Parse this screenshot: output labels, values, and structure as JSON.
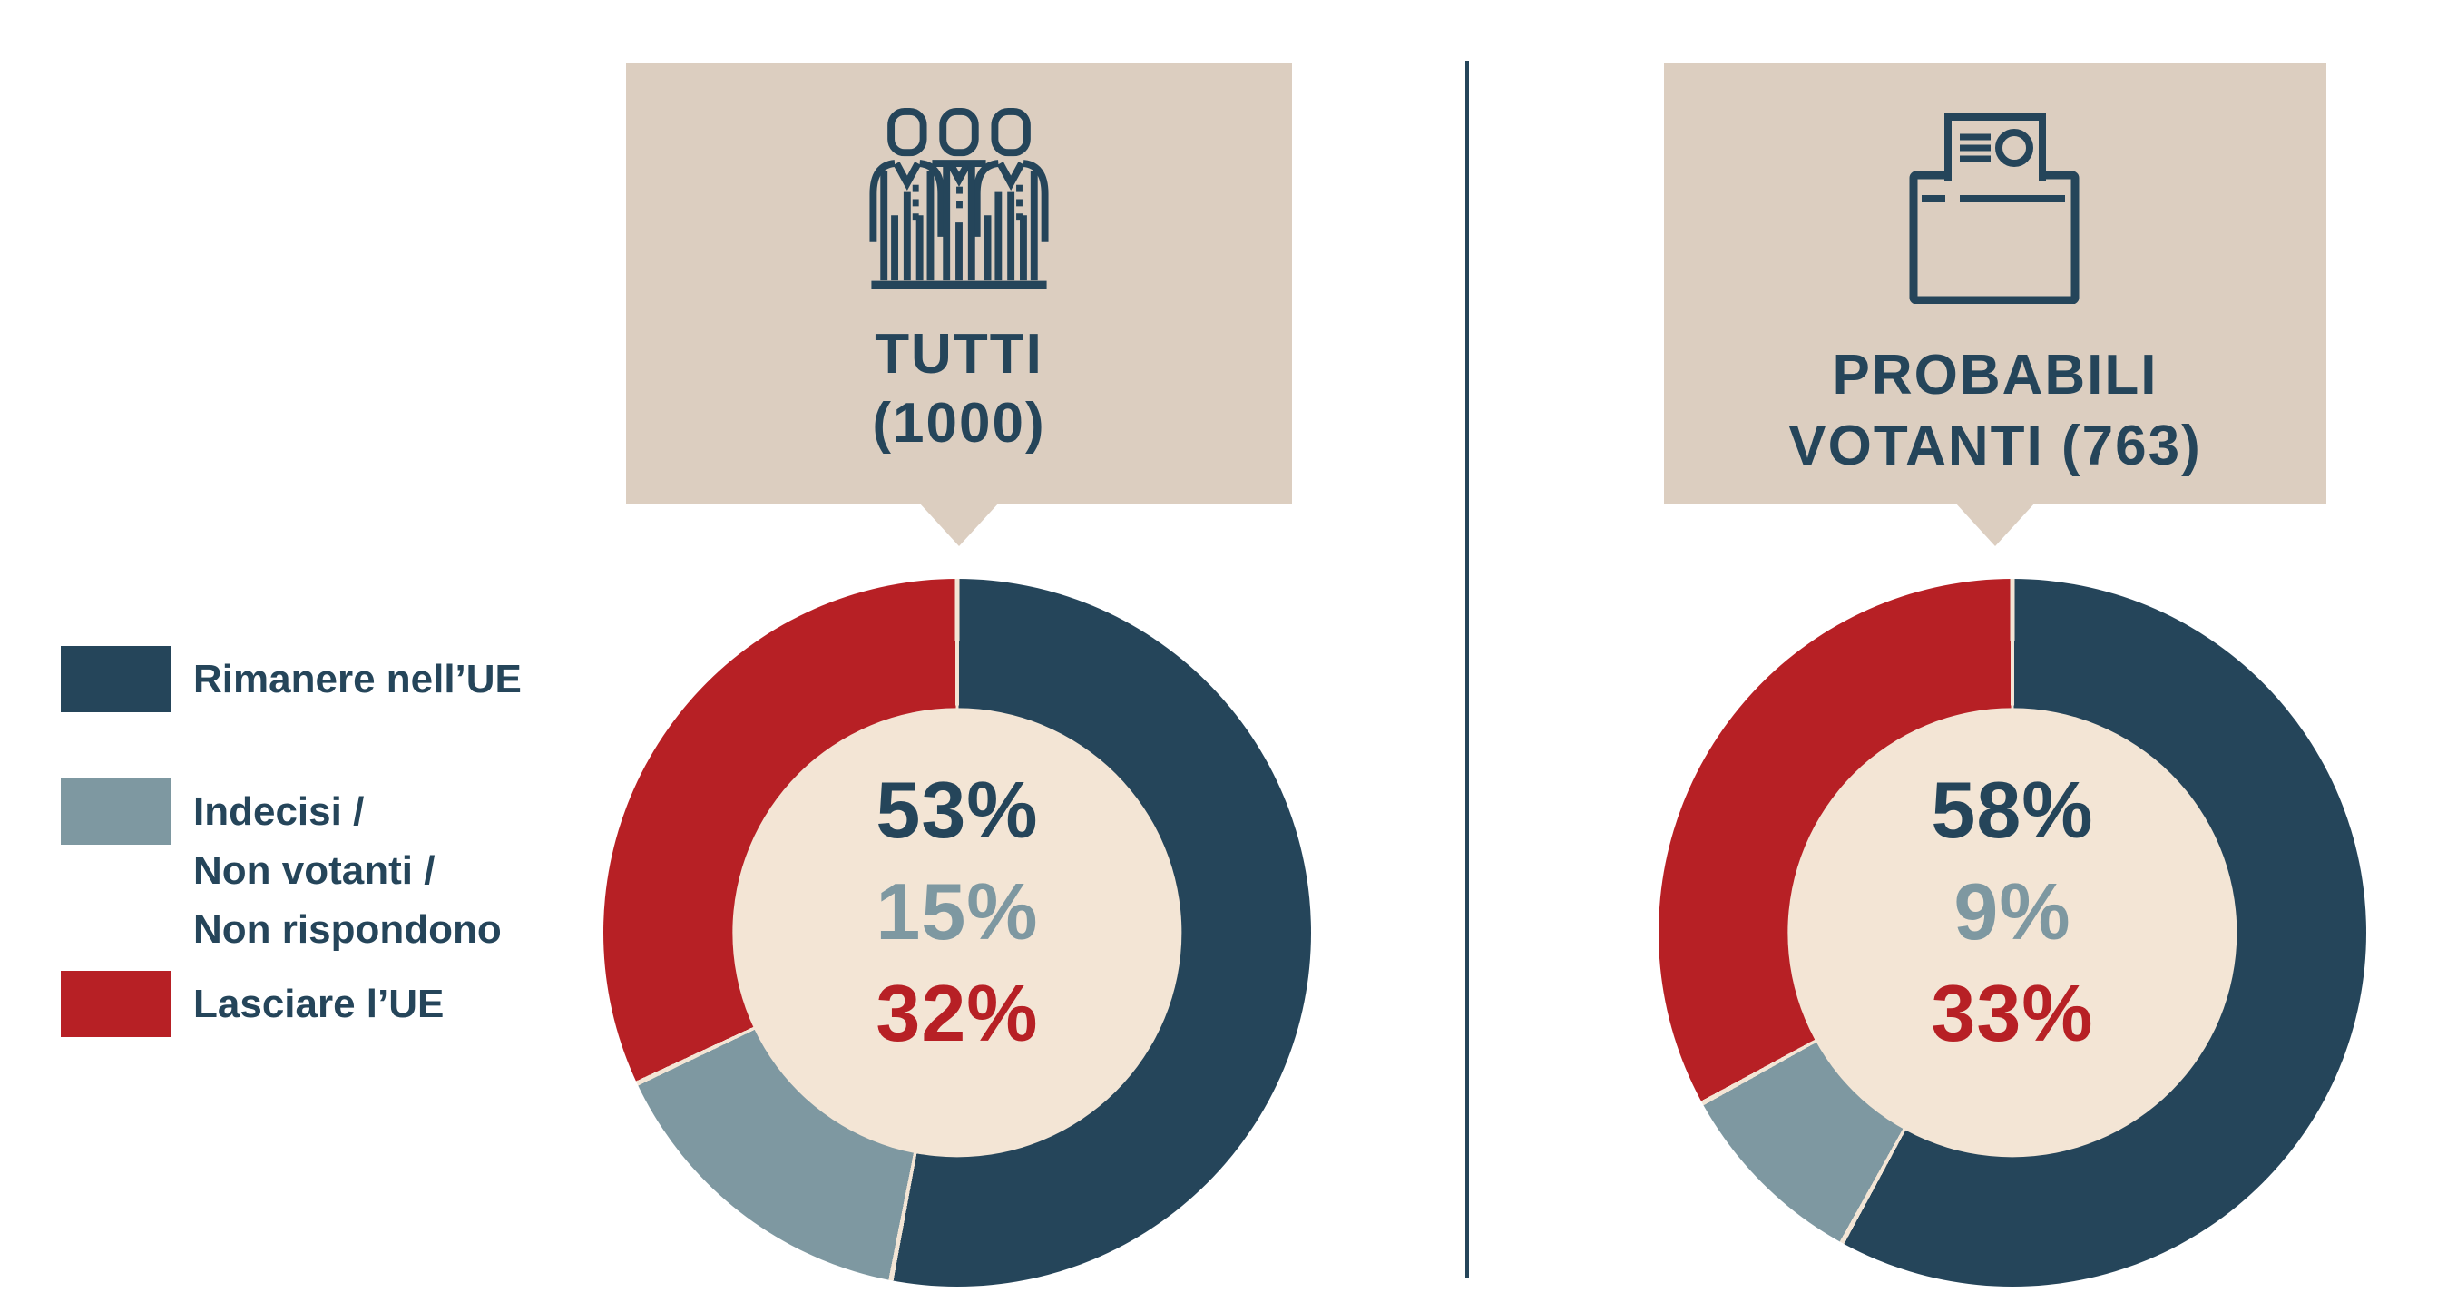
{
  "colors": {
    "background": "#FFFFFF",
    "navy": "#25455A",
    "gray_blue": "#7E98A1",
    "red": "#B72025",
    "callout_bg": "#DCCEC0",
    "donut_center_bg": "#F3E5D5",
    "divider": "#25455A"
  },
  "legend": {
    "items": [
      {
        "label_lines": [
          "Rimanere nell’UE"
        ],
        "color": "#25455A"
      },
      {
        "label_lines": [
          "Indecisi /",
          "Non votanti /",
          "Non rispondono"
        ],
        "color": "#7E98A1"
      },
      {
        "label_lines": [
          "Lasciare l’UE"
        ],
        "color": "#B72025"
      }
    ]
  },
  "panels": [
    {
      "header": {
        "lines": [
          "TUTTI",
          "(1000)"
        ],
        "icon": "people-icon"
      }
    },
    {
      "header": {
        "lines": [
          "PROBABILI",
          "VOTANTI (763)"
        ],
        "icon": "ballot-box-icon"
      }
    }
  ],
  "chart_data": [
    {
      "type": "pie",
      "subtype": "donut",
      "title": "TUTTI (1000)",
      "sample_size": 1000,
      "unit": "%",
      "direction": "clockwise",
      "start_angle_deg": 0,
      "hole_ratio": 0.635,
      "hole_color": "#F3E5D5",
      "separator_color": "#F3E5D5",
      "categories": [
        "Rimanere nell’UE",
        "Indecisi / Non votanti / Non rispondono",
        "Lasciare l’UE"
      ],
      "values": [
        53,
        15,
        32
      ],
      "colors": [
        "#25455A",
        "#7E98A1",
        "#B72025"
      ],
      "center_labels": [
        "53%",
        "15%",
        "32%"
      ],
      "legend_position": "left"
    },
    {
      "type": "pie",
      "subtype": "donut",
      "title": "PROBABILI VOTANTI (763)",
      "sample_size": 763,
      "unit": "%",
      "direction": "clockwise",
      "start_angle_deg": 0,
      "hole_ratio": 0.635,
      "hole_color": "#F3E5D5",
      "separator_color": "#F3E5D5",
      "categories": [
        "Rimanere nell’UE",
        "Indecisi / Non votanti / Non rispondono",
        "Lasciare l’UE"
      ],
      "values": [
        58,
        9,
        33
      ],
      "colors": [
        "#25455A",
        "#7E98A1",
        "#B72025"
      ],
      "center_labels": [
        "58%",
        "9%",
        "33%"
      ],
      "legend_position": "left"
    }
  ]
}
